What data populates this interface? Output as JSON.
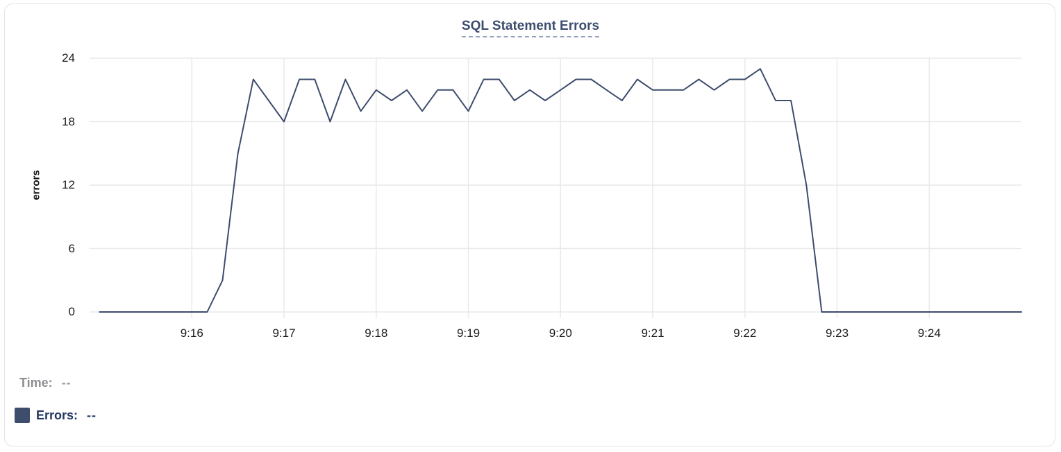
{
  "chart": {
    "title": "SQL Statement Errors"
  },
  "chart_data": {
    "type": "line",
    "title": "SQL Statement Errors",
    "xlabel": "",
    "ylabel": "errors",
    "series_name": "Errors",
    "x_interval_seconds": 10,
    "x": [
      "9:15:00",
      "9:15:10",
      "9:15:20",
      "9:15:30",
      "9:15:40",
      "9:15:50",
      "9:16:00",
      "9:16:10",
      "9:16:20",
      "9:16:30",
      "9:16:40",
      "9:16:50",
      "9:17:00",
      "9:17:10",
      "9:17:20",
      "9:17:30",
      "9:17:40",
      "9:17:50",
      "9:18:00",
      "9:18:10",
      "9:18:20",
      "9:18:30",
      "9:18:40",
      "9:18:50",
      "9:19:00",
      "9:19:10",
      "9:19:20",
      "9:19:30",
      "9:19:40",
      "9:19:50",
      "9:20:00",
      "9:20:10",
      "9:20:20",
      "9:20:30",
      "9:20:40",
      "9:20:50",
      "9:21:00",
      "9:21:10",
      "9:21:20",
      "9:21:30",
      "9:21:40",
      "9:21:50",
      "9:22:00",
      "9:22:10",
      "9:22:20",
      "9:22:30",
      "9:22:40",
      "9:22:50",
      "9:23:00",
      "9:23:10",
      "9:23:20",
      "9:23:30",
      "9:23:40",
      "9:23:50",
      "9:24:00",
      "9:24:10",
      "9:24:20",
      "9:24:30",
      "9:24:40",
      "9:24:50",
      "9:25:00"
    ],
    "values": [
      0,
      0,
      0,
      0,
      0,
      0,
      0,
      0,
      3,
      15,
      22,
      20,
      18,
      22,
      22,
      18,
      22,
      19,
      21,
      20,
      21,
      19,
      21,
      21,
      19,
      22,
      22,
      20,
      21,
      20,
      21,
      22,
      22,
      21,
      20,
      22,
      21,
      21,
      21,
      22,
      21,
      22,
      22,
      23,
      20,
      20,
      12,
      0,
      0,
      0,
      0,
      0,
      0,
      0,
      0,
      0,
      0,
      0,
      0,
      0,
      0
    ],
    "ylim": [
      0,
      24
    ],
    "yticks": [
      0,
      6,
      12,
      18,
      24
    ],
    "xticks": [
      "9:16",
      "9:17",
      "9:18",
      "9:19",
      "9:20",
      "9:21",
      "9:22",
      "9:23",
      "9:24"
    ],
    "grid": true,
    "legend_position": "bottom-left"
  },
  "tooltip": {
    "time_label": "Time:",
    "time_value": "--",
    "errors_label": "Errors:",
    "errors_value": "--"
  },
  "colors": {
    "line": "#3d4c6c",
    "legend_swatch": "#3e4d6b",
    "title": "#3d4d6e",
    "title_underline": "#97a3bc",
    "grid": "#e9e9ea",
    "tick_label": "#1b1b1d",
    "axis_title": "#111111",
    "time_label": "#8e8e93",
    "time_value": "#98989d",
    "errors_label": "#233860",
    "card_border": "#e4e4e7",
    "background": "#ffffff"
  }
}
